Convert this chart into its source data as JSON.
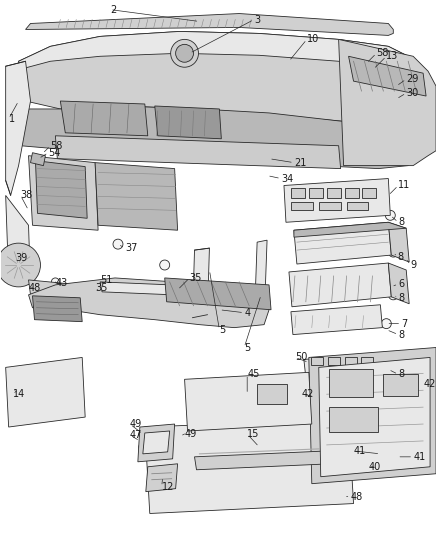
{
  "bg_color": "#ffffff",
  "fig_width": 4.38,
  "fig_height": 5.33,
  "dpi": 100,
  "line_color": "#2a2a2a",
  "text_color": "#1a1a1a",
  "label_fontsize": 7.0,
  "fill_light": "#e8e8e8",
  "fill_mid": "#d0d0d0",
  "fill_dark": "#b8b8b8",
  "fill_white": "#f5f5f5"
}
